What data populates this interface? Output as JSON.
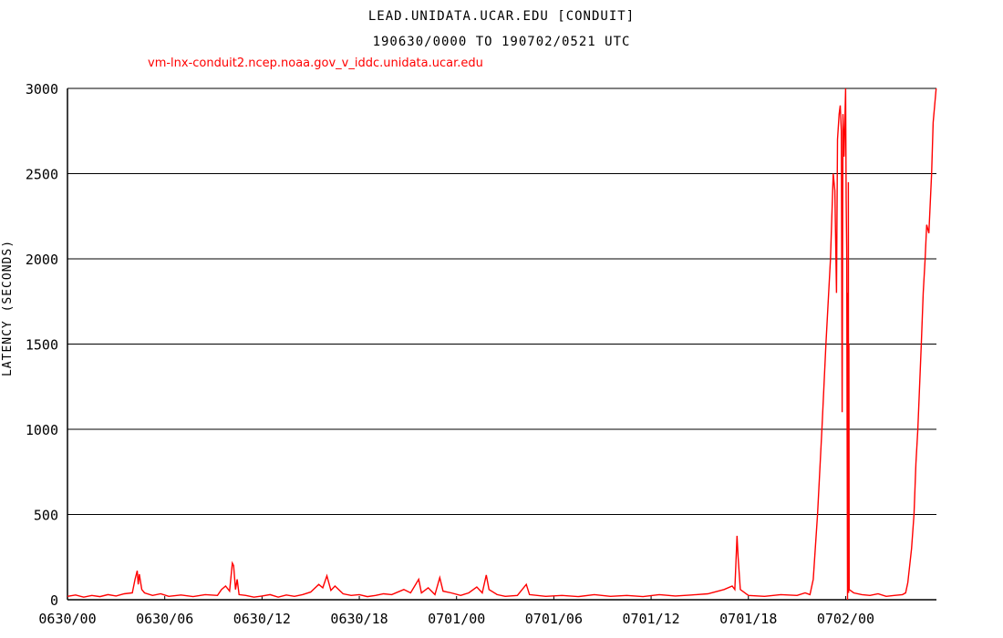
{
  "chart_data": {
    "type": "line",
    "title": "LEAD.UNIDATA.UCAR.EDU [CONDUIT]",
    "subtitle": "190630/0000 TO 190702/0521 UTC",
    "xlabel": "",
    "ylabel": "LATENCY (SECONDS)",
    "ylim": [
      0,
      3000
    ],
    "xlim": [
      "0630/0000",
      "0702/0536"
    ],
    "yticks": [
      "0",
      "500",
      "1000",
      "1500",
      "2000",
      "2500",
      "3000"
    ],
    "xticks": [
      "0630/00",
      "0630/06",
      "0630/12",
      "0630/18",
      "0701/00",
      "0701/06",
      "0701/12",
      "0701/18",
      "0702/00"
    ],
    "grid": true,
    "legend": "top-left",
    "colors": {
      "series": "#ff0000",
      "grid": "#000000",
      "text": "#000000"
    },
    "series": [
      {
        "name": "vm-lnx-conduit2.ncep.noaa.gov_v_iddc.unidata.ucar.edu",
        "points": [
          [
            "0630/0000",
            20
          ],
          [
            "0630/0030",
            28
          ],
          [
            "0630/0100",
            15
          ],
          [
            "0630/0130",
            25
          ],
          [
            "0630/0200",
            18
          ],
          [
            "0630/0230",
            30
          ],
          [
            "0630/0300",
            22
          ],
          [
            "0630/0330",
            35
          ],
          [
            "0630/0400",
            40
          ],
          [
            "0630/0410",
            120
          ],
          [
            "0630/0418",
            170
          ],
          [
            "0630/0422",
            90
          ],
          [
            "0630/0426",
            150
          ],
          [
            "0630/0435",
            60
          ],
          [
            "0630/0445",
            40
          ],
          [
            "0630/0515",
            25
          ],
          [
            "0630/0545",
            35
          ],
          [
            "0630/0615",
            20
          ],
          [
            "0630/0700",
            28
          ],
          [
            "0630/0745",
            18
          ],
          [
            "0630/0830",
            30
          ],
          [
            "0630/0915",
            25
          ],
          [
            "0630/0930",
            60
          ],
          [
            "0630/0945",
            80
          ],
          [
            "0630/1000",
            50
          ],
          [
            "0630/1010",
            215
          ],
          [
            "0630/1015",
            200
          ],
          [
            "0630/1022",
            60
          ],
          [
            "0630/1028",
            120
          ],
          [
            "0630/1035",
            30
          ],
          [
            "0630/1100",
            25
          ],
          [
            "0630/1130",
            15
          ],
          [
            "0630/1200",
            22
          ],
          [
            "0630/1230",
            30
          ],
          [
            "0630/1300",
            15
          ],
          [
            "0630/1330",
            28
          ],
          [
            "0630/1400",
            20
          ],
          [
            "0630/1430",
            30
          ],
          [
            "0630/1500",
            45
          ],
          [
            "0630/1530",
            90
          ],
          [
            "0630/1545",
            70
          ],
          [
            "0630/1600",
            140
          ],
          [
            "0630/1615",
            55
          ],
          [
            "0630/1630",
            80
          ],
          [
            "0630/1700",
            35
          ],
          [
            "0630/1730",
            25
          ],
          [
            "0630/1800",
            30
          ],
          [
            "0630/1830",
            18
          ],
          [
            "0630/1900",
            25
          ],
          [
            "0630/1930",
            35
          ],
          [
            "0630/2000",
            30
          ],
          [
            "0630/2045",
            60
          ],
          [
            "0630/2110",
            40
          ],
          [
            "0630/2140",
            120
          ],
          [
            "0630/2150",
            40
          ],
          [
            "0630/2215",
            70
          ],
          [
            "0630/2240",
            30
          ],
          [
            "0630/2258",
            130
          ],
          [
            "0630/2310",
            50
          ],
          [
            "0630/2340",
            40
          ],
          [
            "0701/0015",
            25
          ],
          [
            "0701/0045",
            40
          ],
          [
            "0701/0115",
            75
          ],
          [
            "0701/0135",
            40
          ],
          [
            "0701/0150",
            145
          ],
          [
            "0701/0200",
            60
          ],
          [
            "0701/0230",
            30
          ],
          [
            "0701/0300",
            20
          ],
          [
            "0701/0345",
            25
          ],
          [
            "0701/0418",
            90
          ],
          [
            "0701/0430",
            30
          ],
          [
            "0701/0530",
            20
          ],
          [
            "0701/0630",
            25
          ],
          [
            "0701/0730",
            18
          ],
          [
            "0701/0830",
            30
          ],
          [
            "0701/0930",
            20
          ],
          [
            "0701/1030",
            25
          ],
          [
            "0701/1130",
            18
          ],
          [
            "0701/1230",
            30
          ],
          [
            "0701/1330",
            22
          ],
          [
            "0701/1430",
            28
          ],
          [
            "0701/1530",
            35
          ],
          [
            "0701/1630",
            60
          ],
          [
            "0701/1700",
            80
          ],
          [
            "0701/1710",
            60
          ],
          [
            "0701/1718",
            375
          ],
          [
            "0701/1722",
            250
          ],
          [
            "0701/1730",
            60
          ],
          [
            "0701/1800",
            25
          ],
          [
            "0701/1900",
            20
          ],
          [
            "0701/2000",
            30
          ],
          [
            "0701/2100",
            25
          ],
          [
            "0701/2130",
            40
          ],
          [
            "0701/2148",
            30
          ],
          [
            "0701/2200",
            120
          ],
          [
            "0701/2216",
            500
          ],
          [
            "0701/2232",
            1000
          ],
          [
            "0701/2247",
            1500
          ],
          [
            "0701/2304",
            2000
          ],
          [
            "0701/2314",
            2500
          ],
          [
            "0701/2320",
            2400
          ],
          [
            "0701/2326",
            1800
          ],
          [
            "0701/2330",
            2700
          ],
          [
            "0701/2336",
            2850
          ],
          [
            "0701/2340",
            2900
          ],
          [
            "0701/2344",
            2750
          ],
          [
            "0701/2347",
            1100
          ],
          [
            "0701/2350",
            2850
          ],
          [
            "0701/2354",
            2600
          ],
          [
            "0702/0000",
            3000
          ],
          [
            "0702/0002",
            2350
          ],
          [
            "0702/0004",
            2050
          ],
          [
            "0702/0007",
            0
          ],
          [
            "0702/0008",
            1800
          ],
          [
            "0702/0009",
            50
          ],
          [
            "0702/0010",
            2450
          ],
          [
            "0702/0011",
            40
          ],
          [
            "0702/0012",
            1500
          ],
          [
            "0702/0013",
            60
          ],
          [
            "0702/0030",
            40
          ],
          [
            "0702/0100",
            30
          ],
          [
            "0702/0130",
            25
          ],
          [
            "0702/0200",
            35
          ],
          [
            "0702/0230",
            20
          ],
          [
            "0702/0300",
            25
          ],
          [
            "0702/0330",
            30
          ],
          [
            "0702/0342",
            40
          ],
          [
            "0702/0350",
            100
          ],
          [
            "0702/0404",
            300
          ],
          [
            "0702/0413",
            500
          ],
          [
            "0702/0420",
            800
          ],
          [
            "0702/0427",
            1000
          ],
          [
            "0702/0440",
            1500
          ],
          [
            "0702/0447",
            1800
          ],
          [
            "0702/0454",
            2000
          ],
          [
            "0702/0500",
            2200
          ],
          [
            "0702/0508",
            2150
          ],
          [
            "0702/0518",
            2500
          ],
          [
            "0702/0524",
            2800
          ],
          [
            "0702/0535",
            3000
          ]
        ]
      }
    ]
  }
}
